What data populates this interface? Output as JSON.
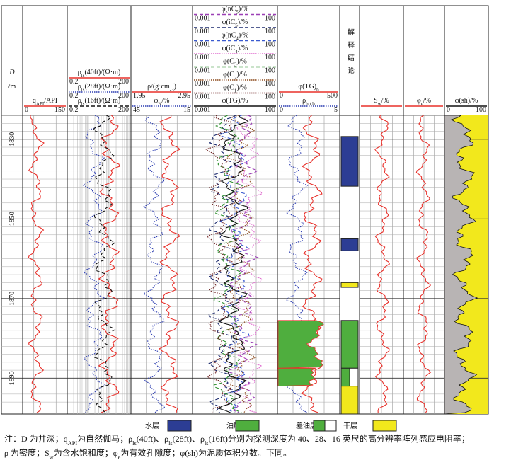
{
  "depth_axis": {
    "label": [
      "D",
      "/m"
    ],
    "ylim": [
      1824,
      1899
    ],
    "yticks": [
      1830,
      1850,
      1870,
      1890
    ]
  },
  "tracks": [
    {
      "curves": [
        {
          "label": [
            "q",
            "API",
            "/API"
          ],
          "scale": [
            0,
            150
          ],
          "color": "#e8302a",
          "style": "solid"
        }
      ]
    },
    {
      "curves": [
        {
          "label": [
            "ρ",
            "ls",
            "(40ft)/(Ω·m)"
          ],
          "scale": [
            0.2,
            200
          ],
          "color": "#e8302a",
          "style": "solid"
        },
        {
          "label": [
            "ρ",
            "ls",
            "(28ft)/(Ω·m)"
          ],
          "scale": [
            0.2,
            200
          ],
          "color": "#2a3bb0",
          "style": "dotted"
        },
        {
          "label": [
            "ρ",
            "ls",
            "(16ft)/(Ω·m)"
          ],
          "scale": [
            0.2,
            200
          ],
          "color": "#111111",
          "style": "dashed"
        }
      ]
    },
    {
      "curves": [
        {
          "label": [
            "ρ/(g·cm",
            "-3",
            ")"
          ],
          "scale": [
            1.95,
            2.95
          ],
          "color": "#e8302a",
          "style": "solid"
        },
        {
          "label": [
            "φ",
            "N",
            "/%"
          ],
          "scale": [
            45,
            -15
          ],
          "color": "#2a3bb0",
          "style": "dotted"
        }
      ]
    },
    {
      "curves": [
        {
          "label": [
            "φ(nC",
            "5",
            ")/%"
          ],
          "scale": [
            0.001,
            100
          ],
          "color": "#9b3fb5",
          "style": "dashed"
        },
        {
          "label": [
            "φ(iC",
            "5",
            ")/%"
          ],
          "scale": [
            0.001,
            100
          ],
          "color": "#1c2a6e",
          "style": "dashed"
        },
        {
          "label": [
            "φ(nC",
            "4",
            ")/%"
          ],
          "scale": [
            0.001,
            100
          ],
          "color": "#3a5ad0",
          "style": "dashed"
        },
        {
          "label": [
            "φ(iC",
            "4",
            ")/%"
          ],
          "scale": [
            0.001,
            100
          ],
          "color": "#e070d0",
          "style": "dotted"
        },
        {
          "label": [
            "φ(C",
            "3",
            ")/%"
          ],
          "scale": [
            0.001,
            100
          ],
          "color": "#2f8f2f",
          "style": "dashed"
        },
        {
          "label": [
            "φ(C",
            "2",
            ")/%"
          ],
          "scale": [
            0.001,
            100
          ],
          "color": "#8b4a1c",
          "style": "dotted"
        },
        {
          "label": [
            "φ(C",
            "1",
            ")/%"
          ],
          "scale": [
            0.001,
            100
          ],
          "color": "#6b1f1f",
          "style": "dotted"
        },
        {
          "label": [
            "φ(TG)/%"
          ],
          "scale": [
            0.001,
            100
          ],
          "color": "#111111",
          "style": "solid"
        }
      ]
    },
    {
      "curves": [
        {
          "label": [
            "φ(TG)",
            "b"
          ],
          "scale": [
            0,
            500
          ],
          "color": "#e8302a",
          "style": "solid"
        },
        {
          "label": [
            "ρ",
            "bit,b"
          ],
          "scale": [
            0,
            5
          ],
          "color": "#2a3bb0",
          "style": "dotted"
        }
      ]
    },
    {
      "curves": [
        {
          "label": [
            "S",
            "w",
            "/%"
          ],
          "color": "#e8302a",
          "style": "solid"
        }
      ]
    },
    {
      "curves": [
        {
          "label": [
            "φ",
            "e",
            "/%"
          ],
          "color": "#e8302a",
          "style": "solid"
        }
      ]
    },
    {
      "curves": [
        {
          "label": [
            "φ(sh)/%"
          ],
          "scale": [
            0,
            100
          ],
          "color": "#111111",
          "style": "solid"
        }
      ]
    }
  ],
  "conclusion": {
    "title": "解释结论",
    "intervals": [
      {
        "top": 1829.3,
        "base": 1841.8,
        "legend": 0
      },
      {
        "top": 1855,
        "base": 1858,
        "legend": 0
      },
      {
        "top": 1866,
        "base": 1867.2,
        "legend": 3
      },
      {
        "top": 1875.5,
        "base": 1887.5,
        "legend": 1
      },
      {
        "top": 1887.5,
        "base": 1892,
        "legend": 2
      },
      {
        "top": 1892,
        "base": 1899,
        "legend": 3
      }
    ]
  },
  "legend": [
    {
      "label": "水层",
      "color": "#2c3d94"
    },
    {
      "label": "油层",
      "color": "#4fae3e"
    },
    {
      "label": "差油层",
      "color": "#4fae3e"
    },
    {
      "label": "干层",
      "color": "#f2e81c"
    }
  ],
  "note": [
    [
      "注：D 为井深；q",
      "API",
      "为自然伽马；ρ",
      "ls",
      "(40ft)、ρ",
      "ls",
      "(28ft)、ρ",
      "ls",
      "(16ft)分别为探测深度为 40、28、16 英尺的高分辨率阵列感应电阻率；"
    ],
    [
      "ρ 为密度；S",
      "w",
      "为含水饱和度；φ",
      "e",
      "为有效孔隙度；φ(sh)为泥质体积分数。下同。"
    ]
  ]
}
